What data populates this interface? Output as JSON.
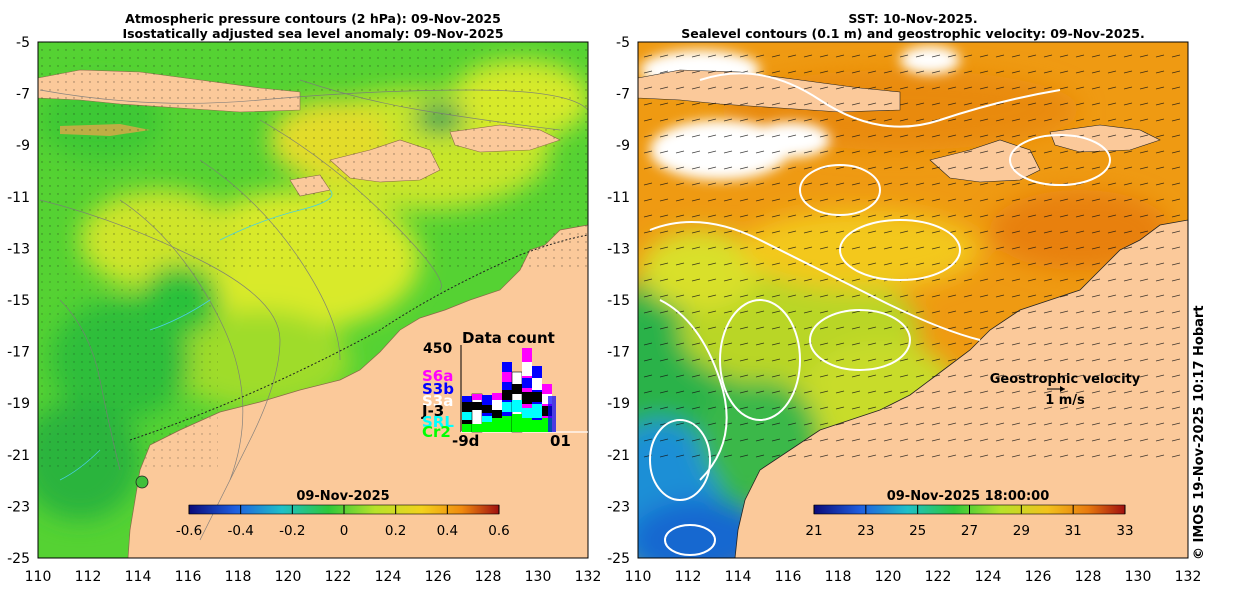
{
  "left_panel": {
    "title_line1": "Atmospheric pressure contours (2 hPa): 09-Nov-2025",
    "title_line2": "Isostatically adjusted sea level anomaly: 09-Nov-2025",
    "colorbar": {
      "date": "09-Nov-2025",
      "ticks": [
        "-0.6",
        "-0.4",
        "-0.2",
        "0",
        "0.2",
        "0.4",
        "0.6"
      ],
      "range": [
        -0.6,
        0.6
      ]
    },
    "data_count": {
      "title": "Data count",
      "max_label": "450",
      "missions": [
        "S6a",
        "S3b",
        "S3a",
        "J-3",
        "SRL",
        "Cr2"
      ],
      "mission_colors": [
        "#ff00ff",
        "#0000ff",
        "#ffffff",
        "#000000",
        "#00ffff",
        "#00ff00"
      ],
      "x_start": "-9d",
      "x_end": "01"
    }
  },
  "right_panel": {
    "title_line1": "SST: 10-Nov-2025.",
    "title_line2": "Sealevel contours (0.1 m) and geostrophic velocity: 09-Nov-2025.",
    "colorbar": {
      "date": "09-Nov-2025 18:00:00",
      "ticks": [
        "21",
        "23",
        "25",
        "27",
        "29",
        "31",
        "33"
      ],
      "range": [
        21,
        33
      ]
    },
    "velocity_legend": {
      "label": "Geostrophic velocity",
      "scale": "1 m/s"
    }
  },
  "axes": {
    "lat_labels": [
      "-5",
      "-7",
      "-9",
      "-11",
      "-13",
      "-15",
      "-17",
      "-19",
      "-21",
      "-23",
      "-25"
    ],
    "lon_labels": [
      "110",
      "112",
      "114",
      "116",
      "118",
      "120",
      "122",
      "124",
      "126",
      "128",
      "130",
      "132"
    ]
  },
  "credit": "© IMOS 19-Nov-2025 10:17 Hobart",
  "colors": {
    "land": "#fbc99a",
    "sla_green": "#52d130",
    "sla_yellow": "#d5e82a",
    "sst_orange": "#f09a10",
    "sst_green": "#2fb944",
    "sst_blue": "#1f8fd6"
  }
}
